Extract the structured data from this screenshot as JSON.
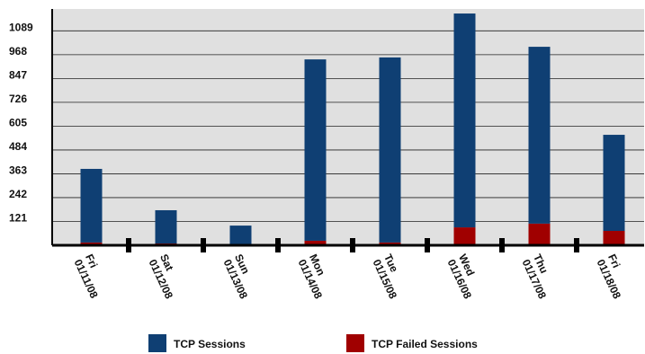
{
  "chart_data": {
    "type": "stacked_bar",
    "categories": [
      "Fri 01/11/08",
      "Sat 01/12/08",
      "Sun 01/13/08",
      "Mon 01/14/08",
      "Tue 01/15/08",
      "Wed 01/16/08",
      "Thu 01/17/08",
      "Fri 01/18/08"
    ],
    "series": [
      {
        "name": "TCP Sessions",
        "color": "#0f3f73",
        "values": [
          374,
          169,
          100,
          921,
          940,
          1086,
          898,
          488
        ]
      },
      {
        "name": "TCP Failed Sessions",
        "color": "#a00000",
        "values": [
          14,
          9,
          0,
          23,
          14,
          91,
          110,
          73
        ]
      }
    ],
    "ylim": [
      0,
      1200
    ],
    "yticks": [
      121,
      242,
      363,
      484,
      605,
      726,
      847,
      968,
      1089
    ],
    "grid": true
  }
}
